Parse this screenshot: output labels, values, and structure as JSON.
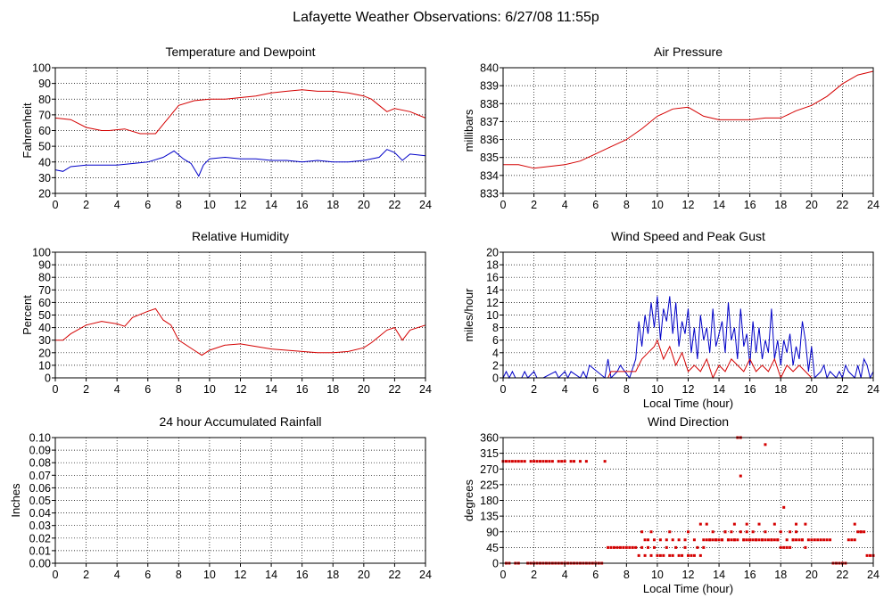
{
  "page_title": "Lafayette Weather Observations: 6/27/08 11:55p",
  "colors": {
    "red": "#d40000",
    "blue": "#0000c8",
    "grid": "#000000"
  },
  "chart_data": [
    {
      "id": "temp",
      "type": "line",
      "title": "Temperature and Dewpoint",
      "xlabel": "",
      "ylabel": "Fahrenheit",
      "xlim": [
        0,
        24
      ],
      "ylim": [
        20,
        100
      ],
      "xticks": [
        0,
        2,
        4,
        6,
        8,
        10,
        12,
        14,
        16,
        18,
        20,
        22,
        24
      ],
      "yticks": [
        20,
        30,
        40,
        50,
        60,
        70,
        80,
        90,
        100
      ],
      "grid": true,
      "series": [
        {
          "color": "#d40000",
          "x": [
            0,
            1,
            2,
            3,
            3.5,
            4.5,
            5.5,
            6.5,
            7,
            7.5,
            8,
            9,
            10,
            11,
            12,
            13,
            14,
            15,
            16,
            17,
            18,
            19,
            20,
            20.5,
            21,
            21.5,
            22,
            23,
            24
          ],
          "y": [
            68,
            67,
            62,
            60,
            60,
            61,
            58,
            58,
            64,
            70,
            76,
            79,
            80,
            80,
            81,
            82,
            84,
            85,
            86,
            85,
            85,
            84,
            82,
            80,
            76,
            72,
            74,
            72,
            68
          ]
        },
        {
          "color": "#0000c8",
          "x": [
            0,
            0.5,
            1,
            2,
            3,
            4,
            5,
            6,
            7,
            7.7,
            8.3,
            8.8,
            9.3,
            9.6,
            10,
            11,
            12,
            13,
            14,
            15,
            16,
            17,
            18,
            19,
            20,
            21,
            21.5,
            22,
            22.5,
            23,
            24
          ],
          "y": [
            35,
            34,
            37,
            38,
            38,
            38,
            39,
            40,
            43,
            47,
            42,
            39,
            31,
            38,
            42,
            43,
            42,
            42,
            41,
            41,
            40,
            41,
            40,
            40,
            41,
            43,
            48,
            46,
            41,
            45,
            44
          ]
        }
      ]
    },
    {
      "id": "pressure",
      "type": "line",
      "title": "Air Pressure",
      "xlabel": "",
      "ylabel": "millibars",
      "xlim": [
        0,
        24
      ],
      "ylim": [
        833,
        840
      ],
      "xticks": [
        0,
        2,
        4,
        6,
        8,
        10,
        12,
        14,
        16,
        18,
        20,
        22,
        24
      ],
      "yticks": [
        833,
        834,
        835,
        836,
        837,
        838,
        839,
        840
      ],
      "grid": true,
      "series": [
        {
          "color": "#d40000",
          "x": [
            0,
            1,
            2,
            3,
            4,
            5,
            6,
            7,
            8,
            9,
            10,
            10.5,
            11,
            12,
            13,
            14,
            15,
            16,
            17,
            18,
            18.5,
            19,
            20,
            21,
            22,
            23,
            24
          ],
          "y": [
            834.6,
            834.6,
            834.4,
            834.5,
            834.6,
            834.8,
            835.2,
            835.6,
            836.0,
            836.6,
            837.3,
            837.5,
            837.7,
            837.8,
            837.3,
            837.1,
            837.1,
            837.1,
            837.2,
            837.2,
            837.4,
            837.6,
            837.9,
            838.4,
            839.1,
            839.6,
            839.8
          ]
        }
      ]
    },
    {
      "id": "humidity",
      "type": "line",
      "title": "Relative Humidity",
      "xlabel": "",
      "ylabel": "Percent",
      "xlim": [
        0,
        24
      ],
      "ylim": [
        0,
        100
      ],
      "xticks": [
        0,
        2,
        4,
        6,
        8,
        10,
        12,
        14,
        16,
        18,
        20,
        22,
        24
      ],
      "yticks": [
        0,
        10,
        20,
        30,
        40,
        50,
        60,
        70,
        80,
        90,
        100
      ],
      "grid": true,
      "series": [
        {
          "color": "#d40000",
          "x": [
            0,
            0.5,
            1,
            2,
            3,
            4,
            4.5,
            5,
            6,
            6.5,
            7,
            7.5,
            8,
            9,
            9.5,
            10,
            11,
            12,
            13,
            14,
            15,
            16,
            17,
            18,
            19,
            20,
            20.5,
            21,
            21.5,
            22,
            22.5,
            23,
            24
          ],
          "y": [
            30,
            30,
            35,
            42,
            45,
            43,
            41,
            48,
            53,
            55,
            46,
            42,
            30,
            22,
            18,
            22,
            26,
            27,
            25,
            23,
            22,
            21,
            20,
            20,
            21,
            24,
            28,
            33,
            38,
            40,
            30,
            38,
            42
          ]
        }
      ]
    },
    {
      "id": "wind",
      "type": "line",
      "title": "Wind Speed and Peak Gust",
      "xlabel": "Local Time (hour)",
      "ylabel": "miles/hour",
      "xlim": [
        0,
        24
      ],
      "ylim": [
        0,
        20
      ],
      "xticks": [
        0,
        2,
        4,
        6,
        8,
        10,
        12,
        14,
        16,
        18,
        20,
        22,
        24
      ],
      "yticks": [
        0,
        2,
        4,
        6,
        8,
        10,
        12,
        14,
        16,
        18,
        20
      ],
      "grid": true,
      "series": [
        {
          "color": "#0000c8",
          "x": [
            0,
            0.2,
            0.4,
            0.6,
            0.8,
            1.2,
            1.4,
            1.6,
            2.0,
            2.2,
            2.6,
            3.4,
            3.6,
            4.0,
            4.2,
            4.4,
            5.0,
            5.2,
            5.4,
            5.6,
            6.6,
            6.8,
            7.0,
            7.4,
            7.6,
            8.2,
            8.6,
            8.8,
            9.0,
            9.2,
            9.4,
            9.6,
            9.8,
            10.0,
            10.2,
            10.4,
            10.6,
            10.8,
            11.0,
            11.2,
            11.4,
            11.6,
            11.8,
            12.0,
            12.2,
            12.4,
            12.6,
            12.8,
            13.0,
            13.2,
            13.4,
            13.6,
            13.8,
            14.0,
            14.2,
            14.4,
            14.6,
            14.8,
            15.0,
            15.2,
            15.4,
            15.6,
            15.8,
            16.0,
            16.2,
            16.4,
            16.6,
            16.8,
            17.0,
            17.2,
            17.4,
            17.6,
            17.8,
            18.0,
            18.2,
            18.4,
            18.6,
            18.8,
            19.0,
            19.2,
            19.4,
            19.6,
            19.8,
            20.0,
            20.2,
            20.6,
            20.8,
            21.0,
            21.2,
            21.6,
            21.8,
            22.0,
            22.2,
            22.4,
            22.8,
            23.0,
            23.2,
            23.4,
            23.6,
            23.8,
            24.0
          ],
          "y": [
            0,
            1,
            0,
            1,
            0,
            0,
            1,
            0,
            1,
            0,
            0,
            1,
            0,
            1,
            0,
            1,
            0,
            1,
            0,
            2,
            0,
            3,
            0,
            1,
            2,
            0,
            3,
            9,
            5,
            10,
            7,
            12,
            8,
            13,
            6,
            11,
            9,
            13,
            7,
            12,
            5,
            9,
            7,
            11,
            4,
            8,
            3,
            10,
            6,
            8,
            4,
            11,
            5,
            7,
            9,
            4,
            12,
            6,
            8,
            3,
            11,
            5,
            7,
            2,
            9,
            4,
            8,
            3,
            6,
            4,
            11,
            3,
            6,
            2,
            6,
            4,
            7,
            2,
            5,
            3,
            9,
            6,
            1,
            5,
            0,
            1,
            2,
            0,
            1,
            0,
            1,
            0,
            2,
            1,
            0,
            2,
            0,
            3,
            2,
            0,
            1
          ]
        },
        {
          "color": "#d40000",
          "x": [
            0,
            6.8,
            7.0,
            8.6,
            9.0,
            9.4,
            9.8,
            10.0,
            10.4,
            10.8,
            11.2,
            11.6,
            12.0,
            12.4,
            12.8,
            13.2,
            13.6,
            14.0,
            14.4,
            14.8,
            15.2,
            15.6,
            16.0,
            16.4,
            16.8,
            17.2,
            17.6,
            18.0,
            18.4,
            18.8,
            19.2,
            19.6,
            20.0,
            20.4,
            24.0
          ],
          "y": [
            0,
            0,
            1,
            1,
            3,
            4,
            5,
            6,
            3,
            5,
            2,
            4,
            1,
            2,
            1,
            3,
            0,
            2,
            1,
            3,
            2,
            1,
            3,
            1,
            2,
            1,
            3,
            0,
            2,
            1,
            2,
            1,
            0,
            0,
            0
          ]
        }
      ]
    },
    {
      "id": "rain",
      "type": "line",
      "title": "24 hour Accumulated Rainfall",
      "xlabel": "",
      "ylabel": "Inches",
      "xlim": [
        0,
        24
      ],
      "ylim": [
        0,
        0.1
      ],
      "xticks": [
        0,
        2,
        4,
        6,
        8,
        10,
        12,
        14,
        16,
        18,
        20,
        22,
        24
      ],
      "yticks": [
        "0.00",
        "0.01",
        "0.02",
        "0.03",
        "0.04",
        "0.05",
        "0.06",
        "0.07",
        "0.08",
        "0.09",
        "0.10"
      ],
      "grid": true,
      "series": [
        {
          "color": "#d40000",
          "x": [
            0,
            24
          ],
          "y": [
            0,
            0
          ]
        }
      ]
    },
    {
      "id": "direction",
      "type": "scatter",
      "title": "Wind Direction",
      "xlabel": "Local Time (hour)",
      "ylabel": "degrees",
      "xlim": [
        0,
        24
      ],
      "ylim": [
        0,
        360
      ],
      "xticks": [
        0,
        2,
        4,
        6,
        8,
        10,
        12,
        14,
        16,
        18,
        20,
        22,
        24
      ],
      "yticks": [
        0,
        45,
        90,
        135,
        180,
        225,
        270,
        315,
        360
      ],
      "grid": true,
      "series": [
        {
          "color": "#d40000",
          "x": [
            0.0,
            0.2,
            0.4,
            0.6,
            0.8,
            1.0,
            1.2,
            1.4,
            1.8,
            2.0,
            2.2,
            2.4,
            2.6,
            2.8,
            3.0,
            3.2,
            3.6,
            3.8,
            4.0,
            4.4,
            4.6,
            5.0,
            5.4,
            6.6,
            0.2,
            0.4,
            0.8,
            1.0,
            1.6,
            1.8,
            2.0,
            2.2,
            2.4,
            2.6,
            2.8,
            3.0,
            3.2,
            3.4,
            3.6,
            3.8,
            4.0,
            4.2,
            4.4,
            4.6,
            4.8,
            5.0,
            5.2,
            5.4,
            5.6,
            5.8,
            6.0,
            6.2,
            6.4,
            6.8,
            7.0,
            7.2,
            7.4,
            7.6,
            7.8,
            8.0,
            8.2,
            8.4,
            8.6,
            8.8,
            9.0,
            9.2,
            9.4,
            9.6,
            9.8,
            10.0,
            10.2,
            10.4,
            10.6,
            10.8,
            11.0,
            11.2,
            11.4,
            11.6,
            11.8,
            12.0,
            12.2,
            12.4,
            12.6,
            12.8,
            13.0,
            13.2,
            13.4,
            13.6,
            13.8,
            14.0,
            14.2,
            14.4,
            14.6,
            14.8,
            15.0,
            15.2,
            15.4,
            15.6,
            15.8,
            16.0,
            16.2,
            16.4,
            16.6,
            16.8,
            17.0,
            17.2,
            17.4,
            17.6,
            17.8,
            18.0,
            18.2,
            18.4,
            18.6,
            18.8,
            19.0,
            19.2,
            19.4,
            19.6,
            19.8,
            20.0,
            20.2,
            20.4,
            20.6,
            20.8,
            21.0,
            21.2,
            21.4,
            21.6,
            21.8,
            22.0,
            22.2,
            22.4,
            22.6,
            22.8,
            23.0,
            23.2,
            23.4,
            23.6,
            23.8,
            24.0,
            15.2,
            15.4,
            15.4,
            17.0,
            18.2,
            9.2,
            9.4,
            9.8,
            10.2,
            10.6,
            11.0,
            11.4,
            11.8,
            12.4,
            13.0,
            13.4,
            13.8,
            14.2,
            14.6,
            15.0,
            15.6,
            16.0,
            16.4,
            16.8,
            17.4,
            17.8,
            18.4,
            18.8,
            19.4,
            12.8,
            13.2,
            14.4,
            15.0,
            15.8,
            16.6,
            17.6,
            18.6,
            19.0,
            19.6,
            22.8,
            23.2,
            9.0,
            9.6,
            10.8,
            12.0,
            13.6,
            14.8,
            15.8,
            16.2,
            17.0,
            18.0,
            19.0
          ],
          "y": [
            292,
            292,
            292,
            292,
            292,
            292,
            292,
            292,
            292,
            292,
            292,
            292,
            292,
            292,
            292,
            292,
            292,
            292,
            292,
            292,
            292,
            292,
            292,
            292,
            0,
            0,
            0,
            0,
            0,
            0,
            0,
            0,
            0,
            0,
            0,
            0,
            0,
            0,
            0,
            0,
            0,
            0,
            0,
            0,
            0,
            0,
            0,
            0,
            0,
            0,
            0,
            0,
            0,
            45,
            45,
            45,
            45,
            45,
            45,
            45,
            45,
            45,
            45,
            22,
            45,
            22,
            45,
            22,
            45,
            22,
            22,
            22,
            45,
            22,
            22,
            45,
            22,
            22,
            45,
            22,
            22,
            22,
            45,
            22,
            45,
            67,
            67,
            67,
            67,
            67,
            67,
            90,
            67,
            67,
            67,
            67,
            90,
            67,
            67,
            67,
            67,
            67,
            67,
            67,
            67,
            67,
            67,
            67,
            67,
            45,
            45,
            45,
            45,
            67,
            67,
            67,
            67,
            45,
            67,
            67,
            67,
            67,
            67,
            67,
            67,
            67,
            0,
            0,
            0,
            0,
            0,
            67,
            67,
            67,
            90,
            90,
            90,
            22,
            22,
            22,
            367,
            367,
            250,
            340,
            160,
            67,
            67,
            67,
            67,
            67,
            67,
            67,
            67,
            67,
            67,
            67,
            67,
            67,
            67,
            67,
            67,
            67,
            67,
            67,
            67,
            67,
            67,
            67,
            67,
            112,
            112,
            90,
            112,
            112,
            112,
            112,
            90,
            112,
            112,
            112,
            90,
            90,
            90,
            90,
            90,
            90,
            90,
            90,
            90,
            90,
            90,
            90
          ]
        }
      ]
    }
  ]
}
